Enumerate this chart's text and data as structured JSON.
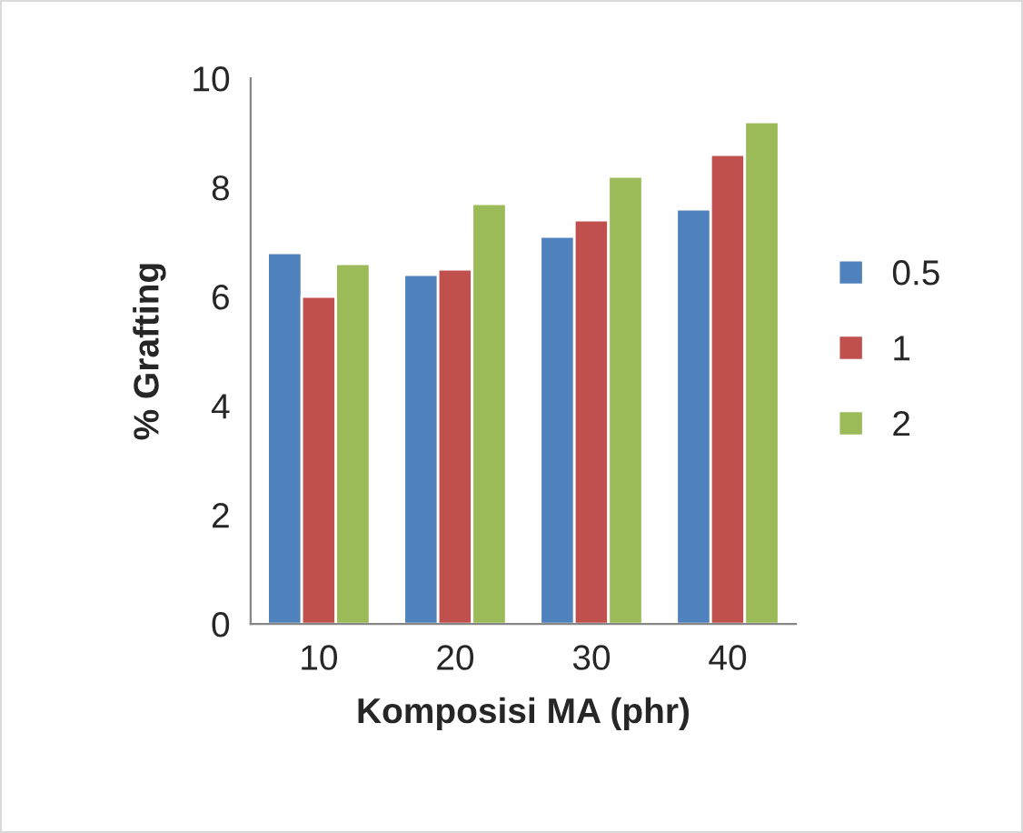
{
  "chart_data": {
    "type": "bar",
    "xlabel": "Komposisi MA (phr)",
    "ylabel": "% Grafting",
    "categories": [
      "10",
      "20",
      "30",
      "40"
    ],
    "series": [
      {
        "name": "0.5",
        "color": "#4f81bd",
        "values": [
          6.8,
          6.4,
          7.1,
          7.6
        ]
      },
      {
        "name": "1",
        "color": "#c0504d",
        "values": [
          6.0,
          6.5,
          7.4,
          8.6
        ]
      },
      {
        "name": "2",
        "color": "#9bbb59",
        "values": [
          6.6,
          7.7,
          8.2,
          9.2
        ]
      }
    ],
    "ylim": [
      0,
      10
    ],
    "yticks": [
      0,
      2,
      4,
      6,
      8,
      10
    ],
    "grid": false,
    "legend": "right"
  }
}
